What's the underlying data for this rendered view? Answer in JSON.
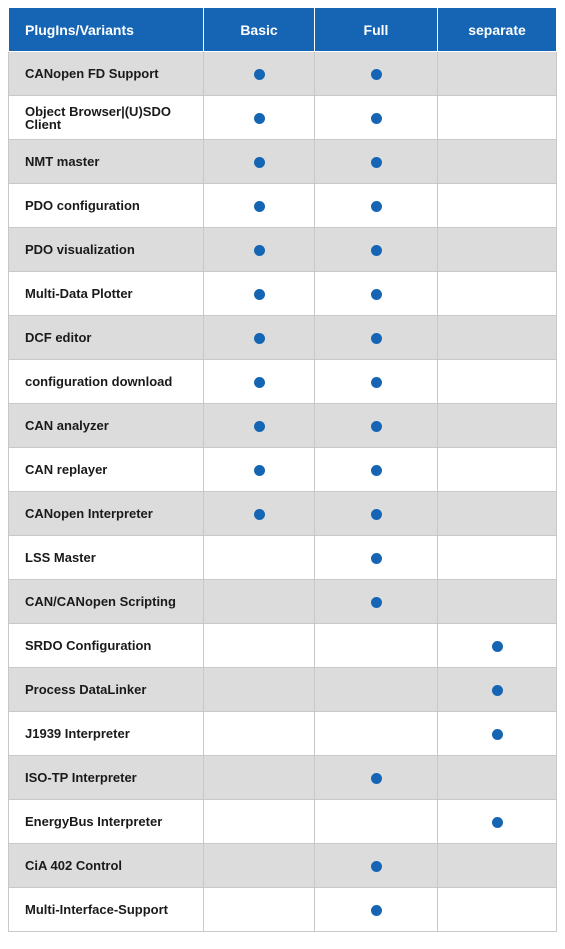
{
  "header": {
    "col0": "PlugIns/Variants",
    "col1": "Basic",
    "col2": "Full",
    "col3": "separate"
  },
  "colors": {
    "accent": "#1565b4",
    "shade": "#dcdcdc"
  },
  "legend": {
    "mark_icon": "filled-circle"
  },
  "rows": [
    {
      "name": "CANopen FD Support",
      "basic": true,
      "full": true,
      "separate": false
    },
    {
      "name": "Object Browser|(U)SDO Client",
      "basic": true,
      "full": true,
      "separate": false
    },
    {
      "name": "NMT master",
      "basic": true,
      "full": true,
      "separate": false
    },
    {
      "name": "PDO configuration",
      "basic": true,
      "full": true,
      "separate": false
    },
    {
      "name": "PDO visualization",
      "basic": true,
      "full": true,
      "separate": false
    },
    {
      "name": "Multi-Data Plotter",
      "basic": true,
      "full": true,
      "separate": false
    },
    {
      "name": "DCF editor",
      "basic": true,
      "full": true,
      "separate": false
    },
    {
      "name": "configuration download",
      "basic": true,
      "full": true,
      "separate": false
    },
    {
      "name": "CAN analyzer",
      "basic": true,
      "full": true,
      "separate": false
    },
    {
      "name": "CAN replayer",
      "basic": true,
      "full": true,
      "separate": false
    },
    {
      "name": "CANopen Interpreter",
      "basic": true,
      "full": true,
      "separate": false
    },
    {
      "name": "LSS Master",
      "basic": false,
      "full": true,
      "separate": false
    },
    {
      "name": "CAN/CANopen Scripting",
      "basic": false,
      "full": true,
      "separate": false
    },
    {
      "name": "SRDO Configuration",
      "basic": false,
      "full": false,
      "separate": true
    },
    {
      "name": "Process DataLinker",
      "basic": false,
      "full": false,
      "separate": true
    },
    {
      "name": "J1939 Interpreter",
      "basic": false,
      "full": false,
      "separate": true
    },
    {
      "name": "ISO-TP Interpreter",
      "basic": false,
      "full": true,
      "separate": false
    },
    {
      "name": "EnergyBus Interpreter",
      "basic": false,
      "full": false,
      "separate": true
    },
    {
      "name": "CiA 402 Control",
      "basic": false,
      "full": true,
      "separate": false
    },
    {
      "name": "Multi-Interface-Support",
      "basic": false,
      "full": true,
      "separate": false
    }
  ]
}
